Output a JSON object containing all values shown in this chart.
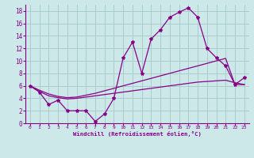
{
  "xlabel": "Windchill (Refroidissement éolien,°C)",
  "bg_color": "#cce8e8",
  "grid_color": "#aacccc",
  "line_color": "#880088",
  "x_data": [
    0,
    1,
    2,
    3,
    4,
    5,
    6,
    7,
    8,
    9,
    10,
    11,
    12,
    13,
    14,
    15,
    16,
    17,
    18,
    19,
    20,
    21,
    22,
    23
  ],
  "main_y": [
    6,
    5,
    3,
    3.7,
    2,
    2,
    2,
    0.3,
    1.5,
    4,
    10.5,
    13,
    8,
    13.5,
    15,
    17,
    17.8,
    18.5,
    17,
    12,
    10.5,
    9.2,
    6.2,
    7.3
  ],
  "line2_y": [
    6,
    5.3,
    4.7,
    4.3,
    4.1,
    4.2,
    4.5,
    4.8,
    5.2,
    5.6,
    6.0,
    6.4,
    6.8,
    7.2,
    7.6,
    8.0,
    8.4,
    8.8,
    9.2,
    9.6,
    10.0,
    10.4,
    6.2,
    6.2
  ],
  "line3_y": [
    6,
    5.1,
    4.4,
    4.1,
    3.9,
    4.0,
    4.2,
    4.4,
    4.6,
    4.8,
    5.0,
    5.2,
    5.4,
    5.6,
    5.8,
    6.0,
    6.2,
    6.4,
    6.6,
    6.7,
    6.8,
    6.9,
    6.5,
    6.2
  ],
  "xlim": [
    -0.5,
    23.5
  ],
  "ylim": [
    0,
    19
  ],
  "yticks": [
    0,
    2,
    4,
    6,
    8,
    10,
    12,
    14,
    16,
    18
  ],
  "xticks": [
    0,
    1,
    2,
    3,
    4,
    5,
    6,
    7,
    8,
    9,
    10,
    11,
    12,
    13,
    14,
    15,
    16,
    17,
    18,
    19,
    20,
    21,
    22,
    23
  ]
}
